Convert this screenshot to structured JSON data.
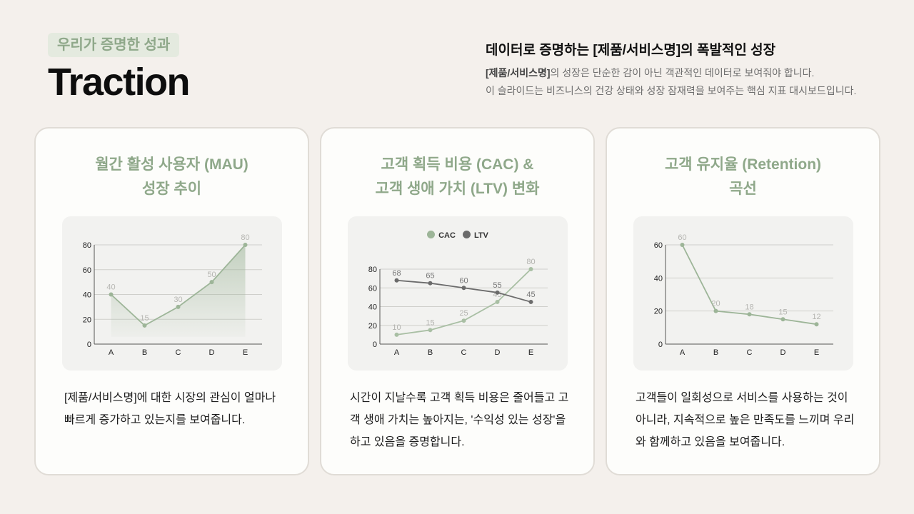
{
  "header": {
    "eyebrow": "우리가 증명한 성과",
    "title": "Traction",
    "headline": "데이터로 증명하는 [제품/서비스명]의 폭발적인 성장",
    "sub_bold": "[제품/서비스명]",
    "sub_line1_rest": "의 성장은 단순한 감이 아닌 객관적인 데이터로 보여줘야 합니다.",
    "sub_line2": "이 슬라이드는 비즈니스의 건강 상태와 성장 잠재력을 보여주는 핵심 지표 대시보드입니다."
  },
  "colors": {
    "accent_green": "#8fa88a",
    "line_green": "#9db598",
    "line_gray": "#6b6b6b",
    "background": "#f4f0ec"
  },
  "cards": [
    {
      "title_line1": "월간 활성 사용자 (MAU)",
      "title_line2": "성장 추이",
      "desc": "[제품/서비스명]에 대한 시장의 관심이 얼마나 빠르게 증가하고 있는지를 보여줍니다."
    },
    {
      "title_line1": "고객 획득 비용 (CAC) &",
      "title_line2": "고객 생애 가치 (LTV) 변화",
      "desc": "시간이 지날수록 고객 획득 비용은 줄어들고 고객 생애 가치는 높아지는, '수익성 있는 성장'을 하고 있음을 증명합니다.",
      "legend": [
        "CAC",
        "LTV"
      ]
    },
    {
      "title_line1": "고객 유지율 (Retention)",
      "title_line2": "곡선",
      "desc": "고객들이 일회성으로 서비스를 사용하는 것이 아니라, 지속적으로 높은 만족도를 느끼며 우리와 함께하고 있음을 보여줍니다."
    }
  ],
  "chart_data": [
    {
      "type": "area",
      "title": "월간 활성 사용자 (MAU) 성장 추이",
      "categories": [
        "A",
        "B",
        "C",
        "D",
        "E"
      ],
      "values": [
        40,
        15,
        30,
        50,
        80
      ],
      "yticks": [
        0,
        20,
        40,
        60,
        80
      ],
      "ylim": [
        0,
        80
      ],
      "grid": true,
      "xlabel": "",
      "ylabel": ""
    },
    {
      "type": "line",
      "title": "고객 획득 비용 (CAC) & 고객 생애 가치 (LTV) 변화",
      "categories": [
        "A",
        "B",
        "C",
        "D",
        "E"
      ],
      "series": [
        {
          "name": "CAC",
          "values": [
            10,
            15,
            25,
            45,
            80
          ]
        },
        {
          "name": "LTV",
          "values": [
            68,
            65,
            60,
            55,
            45
          ]
        }
      ],
      "yticks": [
        0,
        20,
        40,
        60,
        80
      ],
      "ylim": [
        0,
        80
      ],
      "grid": true,
      "legend_position": "top"
    },
    {
      "type": "line",
      "title": "고객 유지율 (Retention) 곡선",
      "categories": [
        "A",
        "B",
        "C",
        "D",
        "E"
      ],
      "values": [
        60,
        20,
        18,
        15,
        12
      ],
      "yticks": [
        0,
        20,
        40,
        60
      ],
      "ylim": [
        0,
        60
      ],
      "grid": true
    }
  ]
}
